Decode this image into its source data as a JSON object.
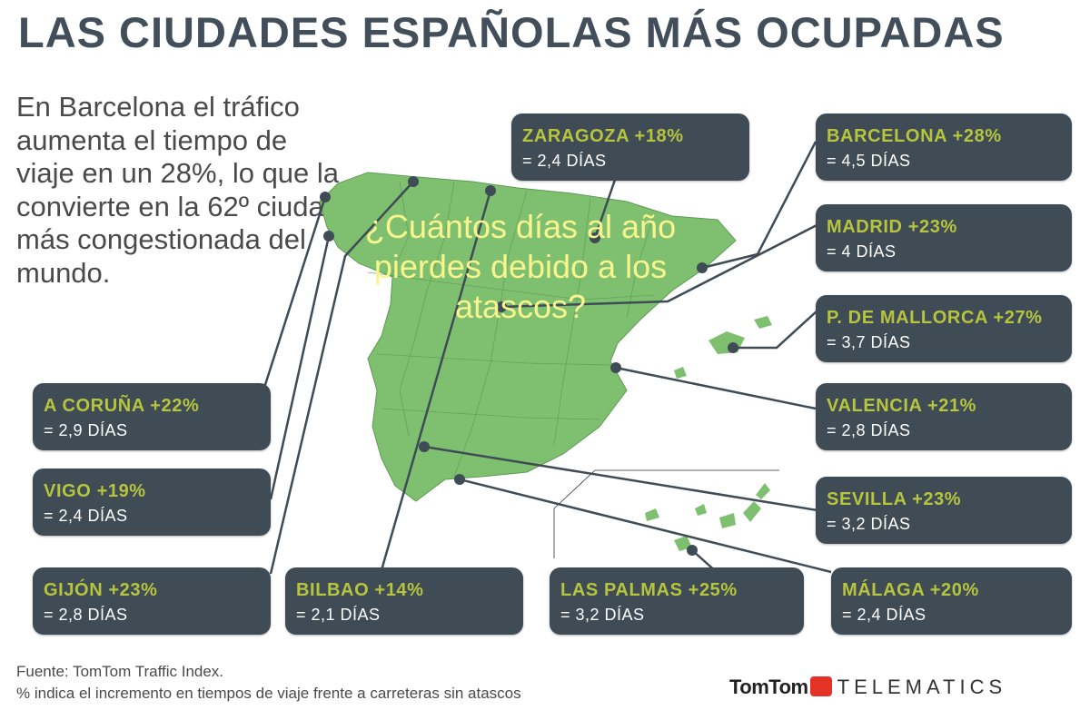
{
  "title": "LAS CIUDADES ESPAÑOLAS MÁS OCUPADAS",
  "intro": "En Barcelona el tráfico aumenta el tiempo de viaje en un 28%, lo que la convierte en la 62º ciudad más congestionada del mundo.",
  "question": "¿Cuántos días al año pierdes debido a los atascos?",
  "cities": [
    {
      "city": "ZARAGOZA +18%",
      "days": "= 2,4 DÍAS"
    },
    {
      "city": "BARCELONA +28%",
      "days": "= 4,5 DÍAS"
    },
    {
      "city": "MADRID +23%",
      "days": "= 4 DÍAS"
    },
    {
      "city": "P. DE MALLORCA +27%",
      "days": "= 3,7 DÍAS"
    },
    {
      "city": "VALENCIA +21%",
      "days": "= 2,8 DÍAS"
    },
    {
      "city": "SEVILLA +23%",
      "days": "= 3,2 DÍAS"
    },
    {
      "city": "MÁLAGA +20%",
      "days": "= 2,4 DÍAS"
    },
    {
      "city": "LAS PALMAS +25%",
      "days": "= 3,2 DÍAS"
    },
    {
      "city": "BILBAO +14%",
      "days": "= 2,1 DÍAS"
    },
    {
      "city": "GIJÓN +23%",
      "days": "= 2,8 DÍAS"
    },
    {
      "city": "VIGO +19%",
      "days": "= 2,4 DÍAS"
    },
    {
      "city": "A CORUÑA +22%",
      "days": "= 2,9 DÍAS"
    }
  ],
  "source_line1": "Fuente: TomTom Traffic Index.",
  "source_line2": "% indica el incremento en tiempos de viaje frente a carreteras sin atascos",
  "brand": {
    "name": "TomTom",
    "product": "TELEMATICS"
  },
  "colors": {
    "box_bg": "#3f4c56",
    "city_text": "#b6c43e",
    "map_fill": "#7fc070",
    "title_text": "#424f5b",
    "question_text": "#f8f48e",
    "brand_red": "#e53227"
  }
}
